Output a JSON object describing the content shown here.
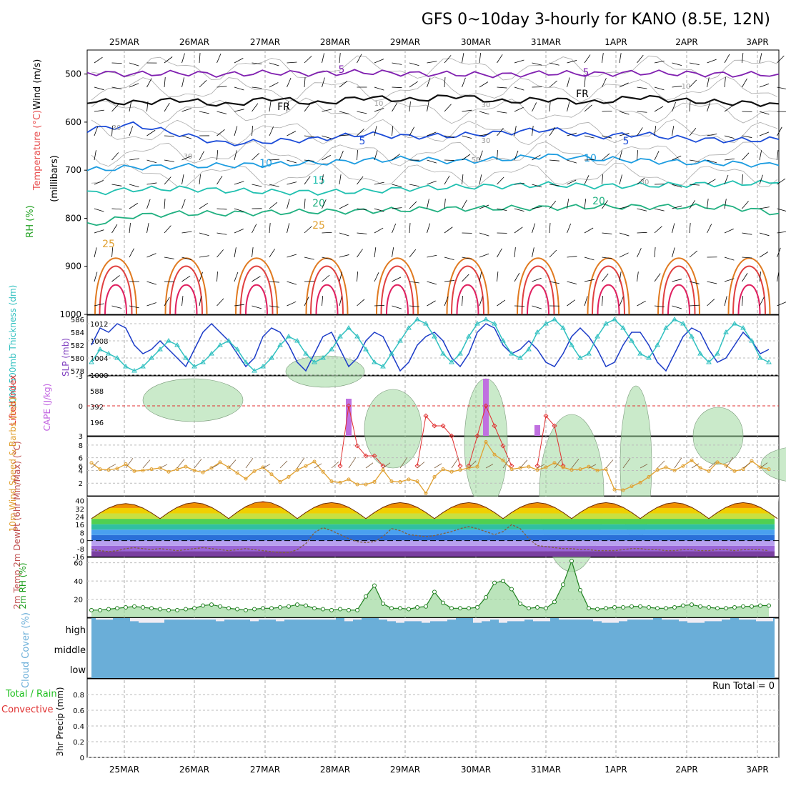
{
  "title": "GFS 0~10day 3-hourly for KANO (8.5E, 12N)",
  "colors": {
    "temp": "#e85050",
    "wind": "#3030d0",
    "rh": "#20b020",
    "rh_fill": "#9ed89e",
    "cape": "#c070e0",
    "lifted": "#e03030",
    "slp": "#1c3cc8",
    "thick": "#30c0c0",
    "speed": "#e0a030",
    "barb": "#806040",
    "cloud": "#6aaed8",
    "precip_total": "#20c020",
    "precip_conv": "#e03030"
  },
  "chart_data": [
    {
      "type": "contour",
      "name": "upper",
      "ylabel": "(millibars)",
      "legend": [
        "Wind (m/s)",
        "Temperature (°C)",
        "RH (%)"
      ],
      "dates": [
        "25MAR",
        "26MAR",
        "27MAR",
        "28MAR",
        "29MAR",
        "30MAR",
        "31MAR",
        "1APR",
        "2APR",
        "3APR"
      ],
      "yticks": [
        500,
        600,
        700,
        800,
        900,
        1000
      ],
      "ylim": [
        450,
        1000
      ],
      "contour_labels": [
        "5",
        "5",
        "FR",
        "FR",
        "5",
        "5",
        "10",
        "10",
        "15",
        "20",
        "20",
        "25",
        "25",
        "10",
        "10",
        "30",
        "30",
        "30",
        "50",
        "30",
        "30"
      ],
      "temp_levels": [
        {
          "label": "-5",
          "p": [
            497,
            500,
            498,
            501,
            497,
            499,
            496,
            499,
            500,
            502,
            498,
            500,
            497,
            499,
            501,
            500
          ]
        },
        {
          "label": "FR",
          "p": [
            556,
            560,
            553,
            565,
            550,
            562,
            548,
            555,
            545,
            558,
            552,
            560,
            547,
            556,
            560,
            562
          ]
        },
        {
          "label": "5",
          "p": [
            616,
            605,
            625,
            645,
            640,
            635,
            625,
            630,
            628,
            622,
            615,
            630,
            625,
            635,
            638,
            636
          ]
        },
        {
          "label": "10",
          "p": [
            700,
            694,
            692,
            690,
            688,
            685,
            680,
            676,
            682,
            677,
            670,
            676,
            680,
            684,
            686,
            690
          ]
        },
        {
          "label": "15",
          "p": [
            748,
            740,
            738,
            742,
            745,
            746,
            744,
            738,
            735,
            733,
            730,
            733,
            732,
            730,
            728,
            726
          ]
        },
        {
          "label": "20",
          "p": [
            815,
            795,
            790,
            790,
            788,
            786,
            785,
            782,
            780,
            779,
            778,
            776,
            776,
            776,
            777,
            790
          ]
        }
      ]
    },
    {
      "type": "line",
      "name": "slp_thickness",
      "ylabel": "1000-500mb Thickness (dm)",
      "y2label": "SLP (mb)",
      "yticks_left": [
        578,
        580,
        582,
        584,
        586
      ],
      "yticks_right": [
        1000,
        1004,
        1008,
        1012
      ],
      "ylim": [
        1000,
        1014
      ],
      "series": [
        {
          "name": "SLP",
          "values": [
            1007,
            1011,
            1010,
            1012,
            1011,
            1007,
            1005,
            1006,
            1008,
            1006,
            1004,
            1002,
            1006,
            1010,
            1012,
            1010,
            1008,
            1005,
            1002,
            1004,
            1009,
            1011,
            1010,
            1007,
            1003,
            1001,
            1005,
            1009,
            1010,
            1006,
            1002,
            1004,
            1008,
            1010,
            1009,
            1005,
            1001,
            1003,
            1007,
            1009,
            1010,
            1008,
            1004,
            1002,
            1005,
            1010,
            1012,
            1011,
            1007,
            1005,
            1006,
            1008,
            1006,
            1003,
            1002,
            1005,
            1009,
            1011,
            1009,
            1006,
            1002,
            1003,
            1007,
            1010,
            1010,
            1007,
            1003,
            1001,
            1005,
            1009,
            1011,
            1010,
            1006,
            1003,
            1004,
            1007,
            1010,
            1008,
            1005,
            1006
          ]
        },
        {
          "name": "Thickness",
          "values": [
            1003,
            1006,
            1005,
            1004,
            1002,
            1001,
            1002,
            1004,
            1006,
            1008,
            1007,
            1004,
            1002,
            1003,
            1005,
            1007,
            1008,
            1006,
            1003,
            1001,
            1002,
            1004,
            1007,
            1009,
            1008,
            1005,
            1003,
            1004,
            1006,
            1009,
            1011,
            1009,
            1006,
            1003,
            1002,
            1005,
            1008,
            1011,
            1013,
            1012,
            1009,
            1005,
            1003,
            1005,
            1009,
            1012,
            1013,
            1012,
            1008,
            1005,
            1004,
            1006,
            1010,
            1012,
            1013,
            1011,
            1007,
            1004,
            1005,
            1009,
            1012,
            1013,
            1011,
            1008,
            1005,
            1004,
            1007,
            1011,
            1013,
            1012,
            1009,
            1005,
            1003,
            1005,
            1010,
            1012,
            1011,
            1008,
            1004,
            1003
          ]
        }
      ]
    },
    {
      "type": "bar",
      "name": "cape_li",
      "ylabel": "Lifted Index",
      "y2label": "CAPE (J/kg)",
      "yticks_left": [
        "-3",
        "0",
        "3",
        "6"
      ],
      "yticks_right": [
        "196",
        "392",
        "588"
      ],
      "cape": [
        {
          "x": 30,
          "value": 520
        },
        {
          "x": 46,
          "value": 800
        },
        {
          "x": 52,
          "value": 150
        }
      ],
      "lifted_index": [
        {
          "x": [
            29,
            30,
            31,
            32,
            33,
            34
          ],
          "values": [
            6,
            0,
            4,
            5,
            5,
            6
          ]
        },
        {
          "x": [
            38,
            39,
            40,
            41,
            42,
            43
          ],
          "values": [
            6,
            1,
            2,
            2,
            3,
            6
          ]
        },
        {
          "x": [
            44,
            45,
            46,
            47,
            48,
            49
          ],
          "values": [
            6,
            3,
            0,
            2,
            4,
            6
          ]
        },
        {
          "x": [
            52,
            53,
            54,
            55
          ],
          "values": [
            6,
            1,
            2,
            6
          ]
        }
      ]
    },
    {
      "type": "line",
      "name": "wind10m",
      "ylabel": "10m Wind Speed & Barbs (m/s)",
      "yticks": [
        2,
        4,
        6,
        8
      ],
      "ylim": [
        0,
        9
      ],
      "values": [
        5.2,
        4.2,
        4.1,
        4.3,
        5.0,
        3.9,
        4.0,
        4.2,
        4.4,
        3.8,
        4.2,
        4.6,
        4.0,
        3.7,
        4.4,
        5.3,
        4.5,
        3.6,
        2.7,
        3.9,
        4.5,
        3.4,
        2.2,
        3.0,
        4.1,
        4.7,
        5.4,
        3.8,
        2.3,
        2.1,
        2.6,
        1.8,
        1.8,
        2.2,
        4.1,
        2.3,
        2.2,
        2.6,
        2.3,
        0.4,
        3.0,
        4.2,
        3.8,
        4.1,
        4.4,
        4.6,
        8.5,
        6.5,
        5.6,
        4.2,
        4.4,
        4.6,
        4.1,
        4.5,
        5.2,
        4.5,
        4.1,
        4.2,
        4.6,
        4.0,
        4.2,
        1.0,
        0.9,
        1.5,
        2.1,
        3.0,
        4.1,
        4.5,
        4.0,
        4.7,
        5.6,
        4.4,
        3.9,
        5.3,
        4.8,
        3.9,
        4.2,
        5.5,
        4.5,
        4.2
      ]
    },
    {
      "type": "area",
      "name": "temp2m",
      "ylabel": "2m Temp 2m DewPt (6hr Min/Max) (°C)",
      "yticks": [
        "-16",
        "-8",
        "0",
        "8",
        "16",
        "24",
        "32",
        "40"
      ],
      "ylim": [
        -16,
        44
      ],
      "temp_peak": [
        37,
        38,
        39,
        38,
        38,
        38,
        38,
        38,
        38,
        38
      ],
      "temp_min": 22,
      "dewpt": [
        -9,
        -10,
        -11,
        -10,
        -8,
        -7,
        -8,
        -9,
        -8,
        -9,
        -10,
        -9,
        -8,
        -7,
        -8,
        -9,
        -10,
        -9,
        -8,
        -9,
        -10,
        -11,
        -12,
        -12,
        -9,
        -3,
        8,
        13,
        10,
        6,
        2,
        -1,
        -2,
        -1,
        4,
        12,
        10,
        6,
        5,
        4,
        5,
        7,
        9,
        12,
        14,
        12,
        9,
        6,
        9,
        16,
        12,
        2,
        -5,
        -6,
        -7,
        -8,
        -8,
        -9,
        -9,
        -10,
        -10,
        -10,
        -9,
        -8,
        -8,
        -9,
        -9,
        -10,
        -10,
        -9,
        -9,
        -10,
        -10,
        -9,
        -9,
        -10,
        -9,
        -9,
        -9,
        -10
      ]
    },
    {
      "type": "area",
      "name": "rh2m",
      "ylabel": "2m RH (%)",
      "yticks": [
        20,
        40,
        60
      ],
      "ylim": [
        0,
        66
      ],
      "values": [
        8,
        8,
        9,
        10,
        11,
        12,
        11,
        10,
        9,
        8,
        8,
        9,
        10,
        13,
        14,
        12,
        10,
        9,
        8,
        9,
        10,
        10,
        11,
        12,
        14,
        13,
        10,
        9,
        8,
        9,
        8,
        8,
        23,
        35,
        15,
        10,
        10,
        9,
        11,
        12,
        28,
        16,
        10,
        10,
        10,
        11,
        22,
        38,
        40,
        31,
        15,
        10,
        11,
        10,
        17,
        36,
        62,
        30,
        10,
        9,
        10,
        11,
        11,
        12,
        12,
        11,
        10,
        10,
        11,
        13,
        14,
        12,
        11,
        10,
        10,
        11,
        12,
        12,
        13,
        13
      ]
    },
    {
      "type": "bar",
      "name": "cloud",
      "ylabel": "Cloud Cover (%)",
      "yticklabels": [
        "high",
        "middle",
        "low"
      ],
      "high_cloud": [
        100,
        90,
        90,
        100,
        100,
        80,
        70,
        70,
        70,
        90,
        90,
        90,
        90,
        90,
        90,
        80,
        90,
        90,
        90,
        80,
        90,
        90,
        80,
        90,
        90,
        90,
        90,
        90,
        90,
        100,
        80,
        90,
        100,
        100,
        90,
        80,
        70,
        80,
        80,
        70,
        80,
        80,
        90,
        100,
        100,
        70,
        80,
        90,
        70,
        80,
        80,
        90,
        80,
        80,
        100,
        90,
        90,
        90,
        90,
        80,
        70,
        70,
        80,
        90,
        90,
        90,
        100,
        90,
        90,
        80,
        70,
        70,
        80,
        80,
        90,
        100,
        90,
        90,
        80,
        80
      ]
    },
    {
      "type": "bar",
      "name": "precip",
      "ylabel": "3hr Precip (mm)",
      "legend": [
        "Total / Rain",
        "Convective"
      ],
      "annotation": "Run Total = 0",
      "yticks": [
        "0",
        "0.2",
        "0.4",
        "0.6",
        "0.8"
      ],
      "ylim": [
        0,
        1
      ],
      "values": [
        0
      ]
    }
  ]
}
